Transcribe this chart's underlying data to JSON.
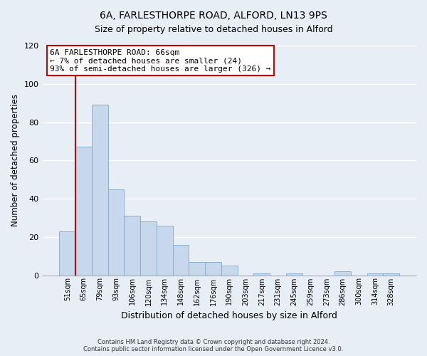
{
  "title": "6A, FARLESTHORPE ROAD, ALFORD, LN13 9PS",
  "subtitle": "Size of property relative to detached houses in Alford",
  "xlabel": "Distribution of detached houses by size in Alford",
  "ylabel": "Number of detached properties",
  "bar_labels": [
    "51sqm",
    "65sqm",
    "79sqm",
    "93sqm",
    "106sqm",
    "120sqm",
    "134sqm",
    "148sqm",
    "162sqm",
    "176sqm",
    "190sqm",
    "203sqm",
    "217sqm",
    "231sqm",
    "245sqm",
    "259sqm",
    "273sqm",
    "286sqm",
    "300sqm",
    "314sqm",
    "328sqm"
  ],
  "bar_values": [
    23,
    67,
    89,
    45,
    31,
    28,
    26,
    16,
    7,
    7,
    5,
    0,
    1,
    0,
    1,
    0,
    0,
    2,
    0,
    1,
    1
  ],
  "bar_color": "#c8d8ec",
  "bar_edge_color": "#8ab0d0",
  "vline_x": 0.5,
  "vline_color": "#cc0000",
  "ylim": [
    0,
    120
  ],
  "yticks": [
    0,
    20,
    40,
    60,
    80,
    100,
    120
  ],
  "annotation_title": "6A FARLESTHORPE ROAD: 66sqm",
  "annotation_line1": "← 7% of detached houses are smaller (24)",
  "annotation_line2": "93% of semi-detached houses are larger (326) →",
  "annotation_box_color": "#ffffff",
  "annotation_box_edge": "#cc0000",
  "footer_line1": "Contains HM Land Registry data © Crown copyright and database right 2024.",
  "footer_line2": "Contains public sector information licensed under the Open Government Licence v3.0.",
  "bg_color": "#e8eef6",
  "plot_bg_color": "#e8eef6",
  "grid_color": "#ffffff",
  "title_fontsize": 10,
  "subtitle_fontsize": 9
}
